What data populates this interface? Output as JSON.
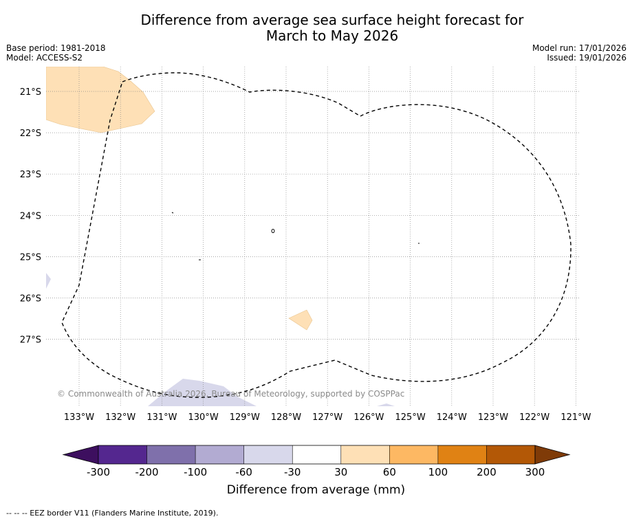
{
  "title_line1": "Difference from average sea surface height forecast for",
  "title_line2": "March to May 2026",
  "base_period": "Base period: 1981-2018",
  "model": "Model: ACCESS-S2",
  "model_run": "Model run: 17/01/2026",
  "issued": "Issued: 19/01/2026",
  "copyright": "© Commonwealth of Australia 2026, Bureau of Meteorology, supported by COSPPac",
  "map": {
    "lon_ticks": [
      "133°W",
      "132°W",
      "131°W",
      "130°W",
      "129°W",
      "128°W",
      "127°W",
      "126°W",
      "125°W",
      "124°W",
      "123°W",
      "122°W",
      "121°W"
    ],
    "lat_ticks": [
      "21°S",
      "22°S",
      "23°S",
      "24°S",
      "25°S",
      "26°S",
      "27°S"
    ]
  },
  "colorbar": {
    "label": "Difference from average (mm)",
    "tick_labels": [
      "-300",
      "-200",
      "-100",
      "-60",
      "-30",
      "30",
      "60",
      "100",
      "200",
      "300"
    ],
    "colors": [
      "#3d0f5f",
      "#54278f",
      "#7f70ab",
      "#b2abd2",
      "#d8d8eb",
      "#ffffff",
      "#fee0b6",
      "#fdb863",
      "#e08214",
      "#b35806",
      "#7f3b08"
    ]
  },
  "legend_note": "--  --  -- EEZ border V11 (Flanders Marine Institute, 2019)."
}
